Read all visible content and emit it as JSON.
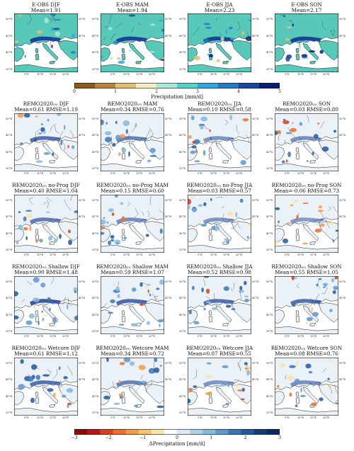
{
  "top_row": {
    "panels": [
      {
        "title": "E-OBS DJF",
        "stat": "Mean=1.91",
        "style": "obs"
      },
      {
        "title": "E-OBS MAM",
        "stat": "Mean=1.94",
        "style": "obs"
      },
      {
        "title": "E-OBS JJA",
        "stat": "Mean=2.23",
        "style": "obs"
      },
      {
        "title": "E-OBS SON",
        "stat": "Mean=2.17",
        "style": "obs"
      }
    ]
  },
  "diff_rows": [
    {
      "panels": [
        {
          "title": "REMO2020₍₀₎ DJF",
          "stat": "Mean=0.61 RMSE=1.19",
          "wet": 0.55,
          "dry": 0.15
        },
        {
          "title": "REMO2020₍₀₎ MAM",
          "stat": "Mean=0.34 RMSE=0.76",
          "wet": 0.4,
          "dry": 0.15
        },
        {
          "title": "REMO2020₍₀₎ JJA",
          "stat": "Mean=0.10 RMSE=0.58",
          "wet": 0.25,
          "dry": 0.3
        },
        {
          "title": "REMO2020₍₀₎ SON",
          "stat": "Mean=0.03 RMSE=0.80",
          "wet": 0.3,
          "dry": 0.45
        }
      ]
    },
    {
      "panels": [
        {
          "title": "REMO2020₍₀₎ no-Prog DJF",
          "stat": "Mean=0.40 RMSE=1.04",
          "wet": 0.45,
          "dry": 0.2
        },
        {
          "title": "REMO2020₍₀₎ no-Prog MAM",
          "stat": "Mean=0.15 RMSE=0.60",
          "wet": 0.3,
          "dry": 0.25
        },
        {
          "title": "REMO2020₍₀₎ no-Prog JJA",
          "stat": "Mean=0.03 RMSE=0.57",
          "wet": 0.25,
          "dry": 0.45
        },
        {
          "title": "REMO2020₍₀₎ no-Prog SON",
          "stat": "Mean=-0.06 RMSE=0.73",
          "wet": 0.2,
          "dry": 0.55
        }
      ]
    },
    {
      "panels": [
        {
          "title": "REMO2020₍₀₎ Shallow DJF",
          "stat": "Mean=0.90 RMSE=1.48",
          "wet": 0.75,
          "dry": 0.08
        },
        {
          "title": "REMO2020₍₀₎ Shallow MAM",
          "stat": "Mean=0.59 RMSE=1.07",
          "wet": 0.6,
          "dry": 0.1
        },
        {
          "title": "REMO2020₍₀₎ Shallow JJA",
          "stat": "Mean=0.52 RMSE=0.98",
          "wet": 0.55,
          "dry": 0.12
        },
        {
          "title": "REMO2020₍₀₎ Shallow SON",
          "stat": "Mean=0.55 RMSE=1.05",
          "wet": 0.55,
          "dry": 0.25
        }
      ]
    },
    {
      "panels": [
        {
          "title": "REMO2020₍₀₎ Wetcore DJF",
          "stat": "Mean=0.61 RMSE=1.12",
          "wet": 0.55,
          "dry": 0.15
        },
        {
          "title": "REMO2020₍₀₎ Wetcore MAM",
          "stat": "Mean=0.34 RMSE=0.72",
          "wet": 0.4,
          "dry": 0.15
        },
        {
          "title": "REMO2020₍₀₎ Wetcore JJA",
          "stat": "Mean=0.07 RMSE=0.55",
          "wet": 0.25,
          "dry": 0.3
        },
        {
          "title": "REMO2020₍₀₎ Wetcore SON",
          "stat": "Mean=0.08 RMSE=0.76",
          "wet": 0.3,
          "dry": 0.4
        }
      ]
    }
  ],
  "lat_labels": [
    "50°N",
    "45°N",
    "40°N",
    "35°N"
  ],
  "lon_labels": [
    "5°E",
    "10°E",
    "15°E",
    "20°E"
  ],
  "colorbar_precip": {
    "label": "Precipitation [mm/d]",
    "ticks": [
      "0",
      "1",
      "2",
      "3",
      "4",
      "5"
    ],
    "colors": [
      "#8c5a1e",
      "#b8863a",
      "#e0c070",
      "#f4ecc0",
      "#a8e8d8",
      "#58d0c8",
      "#30a8d8",
      "#2878c8",
      "#1848a0",
      "#0a1e70"
    ]
  },
  "colorbar_diff": {
    "label": "ΔPrecipitation [mm/d]",
    "ticks": [
      "−3",
      "−2",
      "−1",
      "0",
      "1",
      "2",
      "3"
    ],
    "colors": [
      "#8a0a10",
      "#b81818",
      "#d8401c",
      "#ec6e2a",
      "#f49a48",
      "#f8c270",
      "#fbe3a6",
      "#ffffff",
      "#d8e8f4",
      "#b0d0ea",
      "#88b8de",
      "#5e98cc",
      "#3a76b6",
      "#22589c",
      "#123e80",
      "#0a2864"
    ]
  }
}
